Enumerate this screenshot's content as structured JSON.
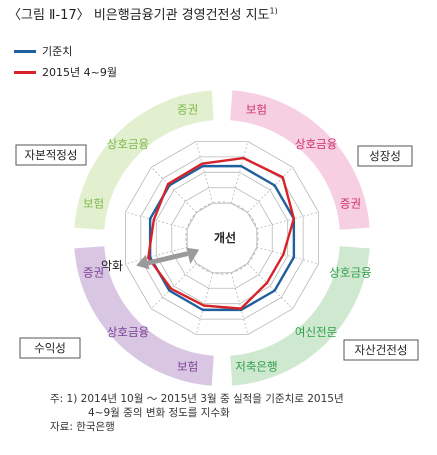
{
  "title": {
    "text": "〈그림 Ⅱ-17〉 비은행금융기관 경영건전성 지도",
    "superscript": "1)"
  },
  "colors": {
    "baseline": "#1f5f9e",
    "current": "#d6232a",
    "growth": "#f6cfe2",
    "asset": "#cfe9d1",
    "profit": "#d9c6e3",
    "capital": "#e2f0d0",
    "grid": "#b8b8b8",
    "arrow": "#9a9a9a",
    "text_pink": "#d0306e",
    "text_green_dark": "#2f9e48",
    "text_purple": "#7a3f93",
    "text_green_light": "#7fb84a"
  },
  "chart_data": {
    "type": "radar",
    "axes": [
      "보험",
      "상호금융",
      "증권",
      "상호금융",
      "여신전문",
      "저축은행",
      "보험",
      "상호금융",
      "증권",
      "보험",
      "상호금융",
      "증권"
    ],
    "series": [
      {
        "name": "기준치",
        "values": [
          0.6,
          0.6,
          0.6,
          0.6,
          0.6,
          0.6,
          0.6,
          0.6,
          0.6,
          0.6,
          0.6,
          0.6
        ]
      },
      {
        "name": "2015년 4~9월",
        "values": [
          0.73,
          0.78,
          0.6,
          0.43,
          0.43,
          0.58,
          0.53,
          0.56,
          0.63,
          0.54,
          0.63,
          0.64
        ]
      }
    ],
    "groups": [
      {
        "label": "성장성",
        "axes": [
          0,
          1,
          2
        ]
      },
      {
        "label": "자산건전성",
        "axes": [
          3,
          4,
          5
        ]
      },
      {
        "label": "수익성",
        "axes": [
          6,
          7,
          8
        ]
      },
      {
        "label": "자본적정성",
        "axes": [
          9,
          10,
          11
        ]
      }
    ],
    "center_labels": {
      "inner": "개선",
      "outer": "악화"
    }
  },
  "notes": [
    "주: 1) 2014년 10월 ～ 2015년 3월 중 실적을 기준치로 2015년",
    "4~9월 중의 변화 정도를 지수화",
    "자료: 한국은행"
  ]
}
